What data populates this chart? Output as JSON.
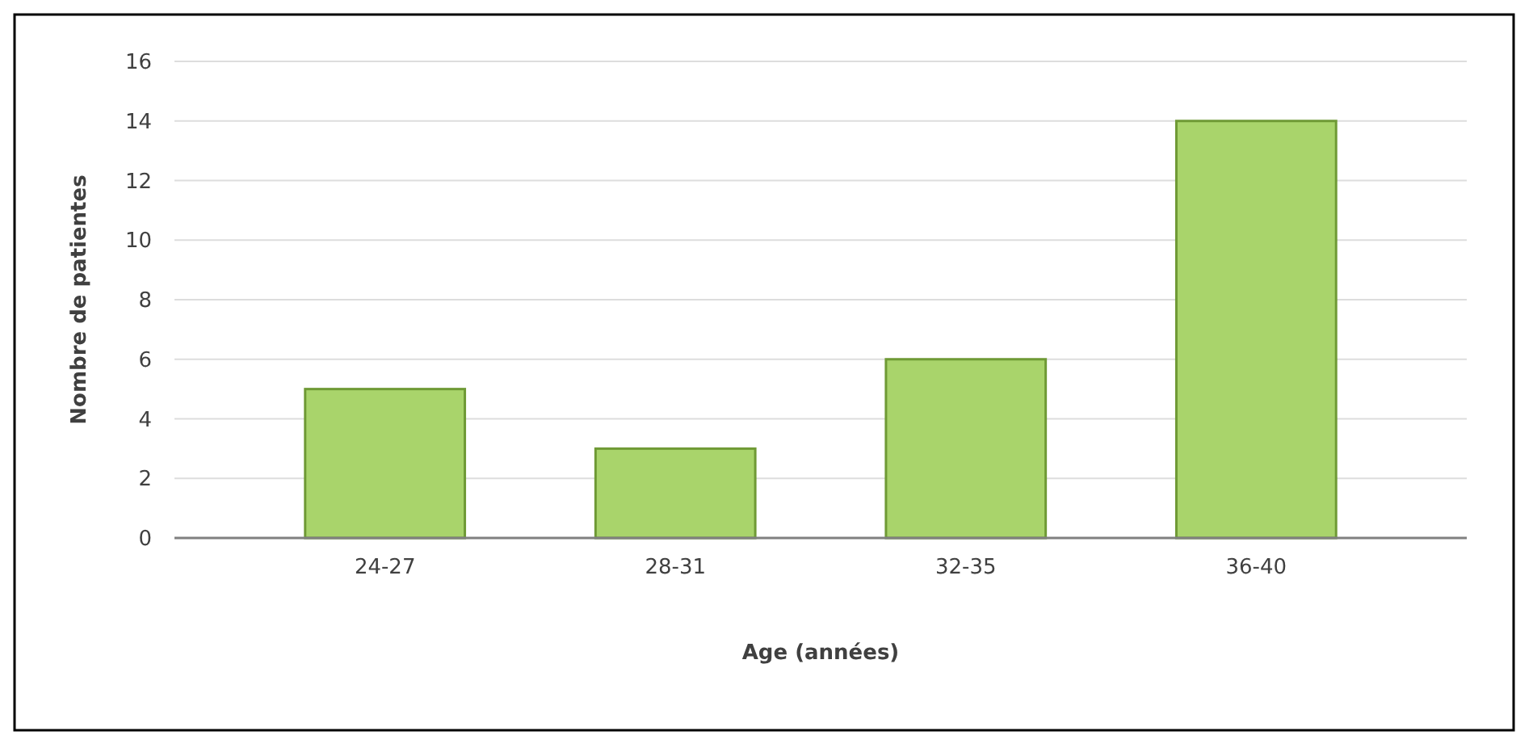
{
  "chart_data": {
    "type": "bar",
    "xlabel": "Age (années)",
    "ylabel": "Nombre de patientes",
    "categories": [
      "24-27",
      "28-31",
      "32-35",
      "36-40"
    ],
    "values": [
      5,
      3,
      6,
      14
    ],
    "color": "#a9d46b",
    "ylim": [
      0,
      16
    ],
    "yticks": [
      0,
      2,
      4,
      6,
      8,
      10,
      12,
      14,
      16
    ],
    "grid": "y"
  }
}
